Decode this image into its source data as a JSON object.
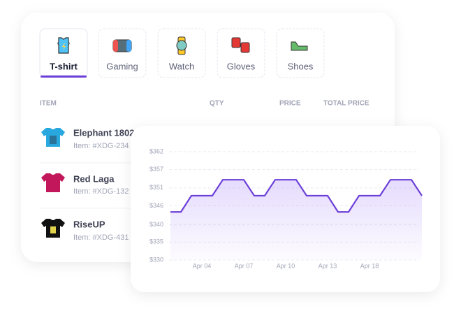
{
  "tabs": [
    "T-shirt",
    "Gaming",
    "Watch",
    "Gloves",
    "Shoes"
  ],
  "table": {
    "headers": [
      "ITEM",
      "QTY",
      "PRICE",
      "TOTAL PRICE"
    ],
    "rows": [
      [
        "Elephant 1802",
        "Item: #XDG-234"
      ],
      [
        "Red Laga",
        "Item: #XDG-132"
      ],
      [
        "RiseUP",
        "Item: #XDG-431"
      ]
    ]
  },
  "chart_data": {
    "type": "line",
    "categories": [
      null,
      null,
      null,
      "Apr 04",
      null,
      null,
      null,
      "Apr 07",
      null,
      null,
      null,
      "Apr 10",
      null,
      null,
      null,
      "Apr 13",
      null,
      null,
      null,
      "Apr 18",
      null,
      null,
      null,
      null,
      null
    ],
    "series": [
      {
        "color": "#6c3fd8",
        "values": [
          344.2,
          344.2,
          349.0,
          349.0,
          349.0,
          353.7,
          353.7,
          353.7,
          349.0,
          349.0,
          353.7,
          353.7,
          353.7,
          349.0,
          349.0,
          349.0,
          344.2,
          344.2,
          349.0,
          349.0,
          349.0,
          353.7,
          353.7,
          353.7,
          349.0
        ]
      }
    ],
    "ylim": [
      330,
      362
    ],
    "yticks": [
      {
        "value": 330,
        "label": "$330"
      },
      {
        "value": 335.3,
        "label": "$335"
      },
      {
        "value": 340.4,
        "label": "$340"
      },
      {
        "value": 346,
        "label": "$346"
      },
      {
        "value": 351.3,
        "label": "$351"
      },
      {
        "value": 356.7,
        "label": "$357"
      },
      {
        "value": 362,
        "label": "$362"
      }
    ],
    "grid": true
  }
}
